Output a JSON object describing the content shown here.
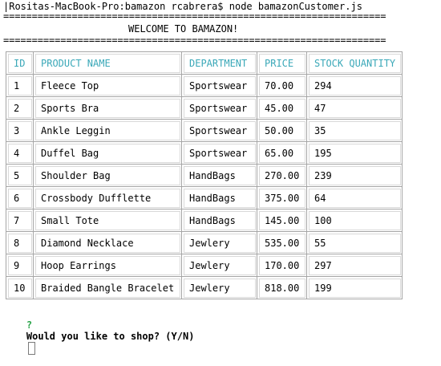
{
  "terminal": {
    "command_line": "|Rositas-MacBook-Pro:bamazon rcabrera$ node bamazonCustomer.js",
    "separator": "===================================================================",
    "welcome": "WELCOME TO BAMAZON!",
    "question_mark": "?",
    "question": "Would you like to shop? (Y/N)"
  },
  "table": {
    "headers": [
      "ID",
      "PRODUCT NAME",
      "DEPARTMENT",
      "PRICE",
      "STOCK QUANTITY"
    ],
    "rows": [
      [
        "1",
        "Fleece Top",
        "Sportswear",
        "70.00",
        "294"
      ],
      [
        "2",
        "Sports Bra",
        "Sportswear",
        "45.00",
        "47"
      ],
      [
        "3",
        "Ankle Leggin",
        "Sportswear",
        "50.00",
        "35"
      ],
      [
        "4",
        "Duffel Bag",
        "Sportswear",
        "65.00",
        "195"
      ],
      [
        "5",
        "Shoulder Bag",
        "HandBags",
        "270.00",
        "239"
      ],
      [
        "6",
        "Crossbody Dufflette",
        "HandBags",
        "375.00",
        "64"
      ],
      [
        "7",
        "Small Tote",
        "HandBags",
        "145.00",
        "100"
      ],
      [
        "8",
        "Diamond Necklace",
        "Jewlery",
        "535.00",
        "55"
      ],
      [
        "9",
        "Hoop Earrings",
        "Jewlery",
        "170.00",
        "297"
      ],
      [
        "10",
        "Braided Bangle Bracelet",
        "Jewlery",
        "818.00",
        "199"
      ]
    ]
  },
  "colors": {
    "header_text": "#3aa8b8",
    "question_mark": "#2aa44a"
  }
}
